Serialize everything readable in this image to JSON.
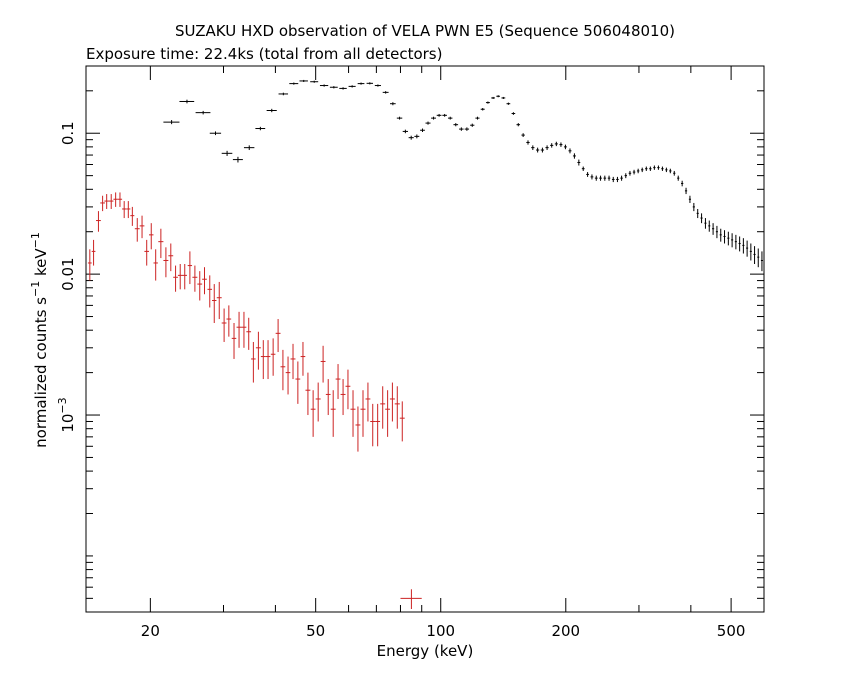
{
  "chart_data": {
    "type": "scatter",
    "title": "SUZAKU HXD observation of VELA PWN E5 (Sequence 506048010)",
    "subtitle": "Exposure time: 22.4ks (total from all detectors)",
    "xlabel": "Energy (keV)",
    "ylabel_main": "normalized counts s",
    "ylabel_sup1": "−1",
    "ylabel_mid": " keV",
    "ylabel_sup2": "−1",
    "x_scale": "log",
    "y_scale": "log",
    "xlim": [
      14,
      600
    ],
    "ylim": [
      4e-05,
      0.3
    ],
    "x_ticks": [
      {
        "value": 20,
        "label": "20"
      },
      {
        "value": 50,
        "label": "50"
      },
      {
        "value": 100,
        "label": "100"
      },
      {
        "value": 200,
        "label": "200"
      },
      {
        "value": 500,
        "label": "500"
      }
    ],
    "y_ticks": [
      {
        "value": 0.1,
        "label": "0.1"
      },
      {
        "value": 0.01,
        "label": "0.01"
      },
      {
        "value": 0.001,
        "label_base": "10",
        "label_exp": "−3"
      }
    ],
    "grid": false,
    "legend": "none",
    "series": [
      {
        "color": "#000000",
        "points": [
          [
            22.5,
            0.12,
            1.0,
            0.004
          ],
          [
            24.5,
            0.168,
            1.0,
            0.005
          ],
          [
            26.8,
            0.14,
            1.1,
            0.004
          ],
          [
            28.7,
            0.1,
            0.9,
            0.003
          ],
          [
            30.6,
            0.072,
            0.9,
            0.003
          ],
          [
            32.5,
            0.065,
            0.9,
            0.003
          ],
          [
            34.6,
            0.079,
            1.0,
            0.003
          ],
          [
            36.8,
            0.108,
            1.0,
            0.003
          ],
          [
            39.2,
            0.145,
            1.1,
            0.004
          ],
          [
            41.8,
            0.19,
            1.1,
            0.004
          ],
          [
            44.3,
            0.225,
            1.1,
            0.004
          ],
          [
            46.8,
            0.235,
            1.1,
            0.004
          ],
          [
            49.6,
            0.232,
            1.1,
            0.004
          ],
          [
            52.4,
            0.218,
            1.2,
            0.004
          ],
          [
            55.3,
            0.212,
            1.2,
            0.004
          ],
          [
            58.2,
            0.208,
            1.2,
            0.004
          ],
          [
            61.2,
            0.215,
            1.2,
            0.004
          ],
          [
            64.3,
            0.225,
            1.2,
            0.004
          ],
          [
            67.5,
            0.226,
            1.2,
            0.004
          ],
          [
            70.6,
            0.218,
            1.2,
            0.004
          ],
          [
            73.7,
            0.195,
            1.2,
            0.004
          ],
          [
            76.7,
            0.162,
            1.2,
            0.004
          ],
          [
            79.6,
            0.128,
            1.2,
            0.003
          ],
          [
            82.2,
            0.103,
            1.2,
            0.003
          ],
          [
            84.9,
            0.093,
            1.2,
            0.003
          ],
          [
            87.6,
            0.095,
            1.2,
            0.003
          ],
          [
            90.4,
            0.105,
            1.2,
            0.003
          ],
          [
            93.2,
            0.118,
            1.3,
            0.003
          ],
          [
            96.1,
            0.128,
            1.3,
            0.003
          ],
          [
            99.1,
            0.134,
            1.3,
            0.003
          ],
          [
            102.2,
            0.134,
            1.3,
            0.003
          ],
          [
            105.4,
            0.128,
            1.3,
            0.003
          ],
          [
            108.7,
            0.115,
            1.4,
            0.003
          ],
          [
            112.1,
            0.107,
            1.4,
            0.003
          ],
          [
            115.6,
            0.107,
            1.4,
            0.003
          ],
          [
            119.1,
            0.114,
            1.4,
            0.003
          ],
          [
            122.6,
            0.128,
            1.4,
            0.003
          ],
          [
            126.2,
            0.148,
            1.4,
            0.003
          ],
          [
            129.9,
            0.165,
            1.4,
            0.003
          ],
          [
            133.7,
            0.178,
            1.4,
            0.003
          ],
          [
            137.5,
            0.183,
            1.4,
            0.003
          ],
          [
            141.5,
            0.178,
            1.5,
            0.003
          ],
          [
            145.5,
            0.162,
            1.5,
            0.003
          ],
          [
            149.6,
            0.138,
            1.5,
            0.003
          ],
          [
            153.7,
            0.115,
            1.5,
            0.003
          ],
          [
            157.9,
            0.097,
            1.5,
            0.003
          ],
          [
            162.2,
            0.086,
            1.5,
            0.003
          ],
          [
            166.6,
            0.079,
            1.5,
            0.003
          ],
          [
            171.1,
            0.076,
            1.5,
            0.003
          ],
          [
            175.7,
            0.076,
            1.6,
            0.003
          ],
          [
            180.3,
            0.079,
            1.6,
            0.003
          ],
          [
            185.0,
            0.082,
            1.6,
            0.003
          ],
          [
            189.8,
            0.084,
            1.6,
            0.003
          ],
          [
            194.7,
            0.083,
            1.6,
            0.003
          ],
          [
            199.6,
            0.08,
            1.6,
            0.003
          ],
          [
            204.7,
            0.075,
            1.7,
            0.003
          ],
          [
            209.8,
            0.069,
            1.7,
            0.003
          ],
          [
            215.0,
            0.062,
            1.7,
            0.003
          ],
          [
            220.3,
            0.056,
            1.7,
            0.002
          ],
          [
            225.7,
            0.051,
            1.7,
            0.002
          ],
          [
            231.2,
            0.049,
            1.8,
            0.002
          ],
          [
            236.8,
            0.048,
            1.8,
            0.002
          ],
          [
            242.5,
            0.048,
            1.8,
            0.002
          ],
          [
            248.3,
            0.048,
            1.8,
            0.002
          ],
          [
            254.2,
            0.048,
            1.8,
            0.002
          ],
          [
            260.2,
            0.047,
            1.9,
            0.002
          ],
          [
            266.3,
            0.047,
            1.9,
            0.002
          ],
          [
            272.5,
            0.048,
            1.9,
            0.002
          ],
          [
            278.9,
            0.05,
            1.9,
            0.002
          ],
          [
            285.4,
            0.052,
            2.0,
            0.002
          ],
          [
            292.0,
            0.053,
            2.0,
            0.002
          ],
          [
            298.7,
            0.054,
            2.0,
            0.002
          ],
          [
            305.5,
            0.055,
            2.0,
            0.002
          ],
          [
            312.5,
            0.056,
            2.1,
            0.002
          ],
          [
            319.6,
            0.056,
            2.1,
            0.002
          ],
          [
            326.8,
            0.057,
            2.1,
            0.002
          ],
          [
            334.2,
            0.057,
            2.2,
            0.002
          ],
          [
            341.7,
            0.056,
            2.2,
            0.002
          ],
          [
            349.3,
            0.055,
            2.2,
            0.002
          ],
          [
            357.0,
            0.054,
            2.3,
            0.002
          ],
          [
            364.9,
            0.052,
            2.3,
            0.002
          ],
          [
            373.0,
            0.048,
            2.3,
            0.002
          ],
          [
            381.2,
            0.044,
            2.4,
            0.002
          ],
          [
            389.5,
            0.039,
            2.4,
            0.002
          ],
          [
            398.0,
            0.034,
            2.4,
            0.002
          ],
          [
            406.7,
            0.03,
            2.5,
            0.002
          ],
          [
            415.5,
            0.027,
            2.5,
            0.002
          ],
          [
            424.5,
            0.025,
            2.6,
            0.002
          ],
          [
            433.7,
            0.023,
            2.6,
            0.002
          ],
          [
            443.0,
            0.022,
            2.6,
            0.002
          ],
          [
            452.5,
            0.021,
            2.7,
            0.002
          ],
          [
            462.2,
            0.02,
            2.7,
            0.002
          ],
          [
            472.1,
            0.019,
            2.8,
            0.002
          ],
          [
            482.1,
            0.0185,
            2.8,
            0.002
          ],
          [
            492.4,
            0.018,
            2.9,
            0.002
          ],
          [
            502.8,
            0.0175,
            2.9,
            0.002
          ],
          [
            513.4,
            0.017,
            3.0,
            0.002
          ],
          [
            524.2,
            0.0165,
            3.0,
            0.002
          ],
          [
            535.2,
            0.016,
            3.1,
            0.002
          ],
          [
            546.4,
            0.0153,
            3.1,
            0.002
          ],
          [
            557.8,
            0.0145,
            3.2,
            0.002
          ],
          [
            569.4,
            0.0138,
            3.3,
            0.002
          ],
          [
            581.2,
            0.0132,
            3.3,
            0.002
          ],
          [
            593.2,
            0.0125,
            3.4,
            0.002
          ]
        ]
      },
      {
        "color": "#cc2222",
        "points": [
          [
            14.3,
            0.012,
            0.15,
            0.003
          ],
          [
            14.6,
            0.0145,
            0.15,
            0.003
          ],
          [
            15.0,
            0.024,
            0.2,
            0.004
          ],
          [
            15.35,
            0.032,
            0.2,
            0.004
          ],
          [
            15.7,
            0.033,
            0.2,
            0.004
          ],
          [
            16.1,
            0.033,
            0.2,
            0.004
          ],
          [
            16.5,
            0.034,
            0.2,
            0.004
          ],
          [
            16.9,
            0.034,
            0.2,
            0.004
          ],
          [
            17.3,
            0.029,
            0.2,
            0.004
          ],
          [
            17.7,
            0.029,
            0.2,
            0.004
          ],
          [
            18.1,
            0.026,
            0.2,
            0.004
          ],
          [
            18.6,
            0.021,
            0.25,
            0.004
          ],
          [
            19.1,
            0.022,
            0.25,
            0.004
          ],
          [
            19.6,
            0.0145,
            0.25,
            0.003
          ],
          [
            20.1,
            0.019,
            0.25,
            0.004
          ],
          [
            20.6,
            0.012,
            0.25,
            0.003
          ],
          [
            21.2,
            0.017,
            0.3,
            0.004
          ],
          [
            21.8,
            0.0125,
            0.3,
            0.003
          ],
          [
            22.4,
            0.0135,
            0.3,
            0.003
          ],
          [
            23.0,
            0.0095,
            0.3,
            0.002
          ],
          [
            23.6,
            0.0098,
            0.3,
            0.002
          ],
          [
            24.2,
            0.0098,
            0.3,
            0.002
          ],
          [
            24.9,
            0.0115,
            0.3,
            0.003
          ],
          [
            25.6,
            0.0095,
            0.35,
            0.002
          ],
          [
            26.3,
            0.0085,
            0.35,
            0.002
          ],
          [
            27.0,
            0.0092,
            0.35,
            0.002
          ],
          [
            27.8,
            0.0078,
            0.35,
            0.002
          ],
          [
            28.5,
            0.0065,
            0.35,
            0.002
          ],
          [
            29.3,
            0.0068,
            0.4,
            0.002
          ],
          [
            30.1,
            0.0045,
            0.4,
            0.0012
          ],
          [
            30.9,
            0.0048,
            0.4,
            0.0012
          ],
          [
            31.8,
            0.0035,
            0.4,
            0.001
          ],
          [
            32.7,
            0.0042,
            0.45,
            0.0012
          ],
          [
            33.6,
            0.0042,
            0.45,
            0.0012
          ],
          [
            34.5,
            0.0039,
            0.45,
            0.001
          ],
          [
            35.4,
            0.0025,
            0.45,
            0.0008
          ],
          [
            36.4,
            0.003,
            0.5,
            0.0009
          ],
          [
            37.4,
            0.0026,
            0.5,
            0.0008
          ],
          [
            38.4,
            0.0026,
            0.5,
            0.0008
          ],
          [
            39.5,
            0.0027,
            0.5,
            0.0008
          ],
          [
            40.6,
            0.0038,
            0.55,
            0.001
          ],
          [
            41.7,
            0.0022,
            0.55,
            0.0007
          ],
          [
            42.9,
            0.002,
            0.55,
            0.0006
          ],
          [
            44.1,
            0.0025,
            0.6,
            0.0007
          ],
          [
            45.3,
            0.0018,
            0.6,
            0.0006
          ],
          [
            46.6,
            0.0026,
            0.6,
            0.0007
          ],
          [
            47.9,
            0.0015,
            0.65,
            0.0005
          ],
          [
            49.3,
            0.0011,
            0.65,
            0.0004
          ],
          [
            50.7,
            0.0013,
            0.7,
            0.0004
          ],
          [
            52.1,
            0.0024,
            0.7,
            0.0007
          ],
          [
            53.6,
            0.0014,
            0.7,
            0.0004
          ],
          [
            55.1,
            0.0011,
            0.75,
            0.0004
          ],
          [
            56.6,
            0.0018,
            0.75,
            0.0005
          ],
          [
            58.2,
            0.0014,
            0.8,
            0.0004
          ],
          [
            59.8,
            0.0016,
            0.8,
            0.0005
          ],
          [
            61.5,
            0.0011,
            0.85,
            0.0004
          ],
          [
            63.2,
            0.00085,
            0.85,
            0.0003
          ],
          [
            65.0,
            0.0011,
            0.9,
            0.0004
          ],
          [
            66.8,
            0.0013,
            0.9,
            0.0004
          ],
          [
            68.6,
            0.0009,
            0.95,
            0.0003
          ],
          [
            70.5,
            0.0009,
            0.95,
            0.0003
          ],
          [
            72.5,
            0.0012,
            1.0,
            0.0004
          ],
          [
            74.5,
            0.0011,
            1.0,
            0.0004
          ],
          [
            76.5,
            0.0013,
            1.05,
            0.0004
          ],
          [
            78.6,
            0.0012,
            1.1,
            0.0004
          ],
          [
            80.8,
            0.00095,
            1.1,
            0.0003
          ],
          [
            85.0,
            5e-05,
            5.0,
            8e-06
          ]
        ]
      }
    ]
  }
}
